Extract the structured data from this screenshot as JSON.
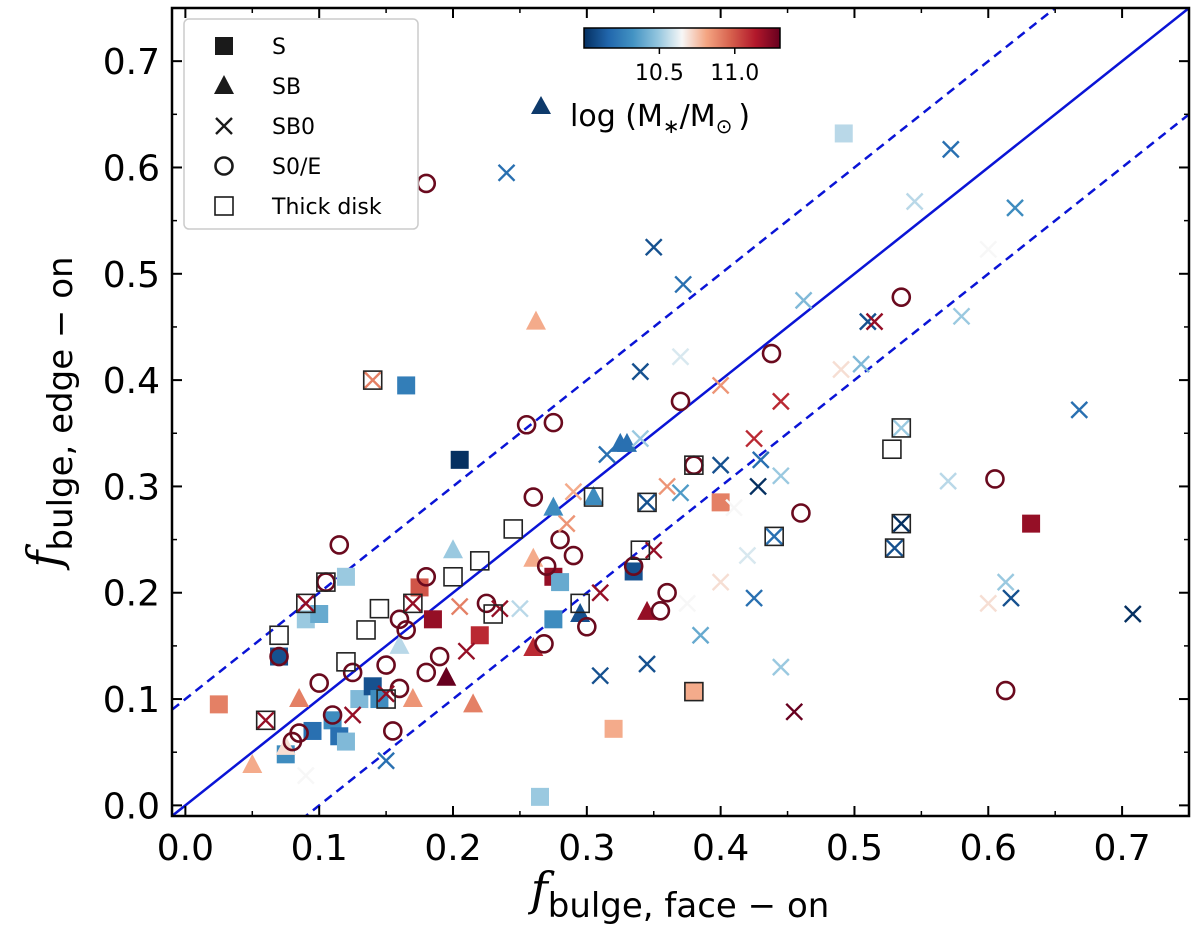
{
  "chart_data": {
    "type": "scatter",
    "xlabel": {
      "main": "f",
      "sub": "bulge, face − on"
    },
    "ylabel": {
      "main": "f",
      "sub": "bulge, edge − on"
    },
    "xlim": [
      -0.01,
      0.75
    ],
    "ylim": [
      -0.01,
      0.75
    ],
    "x_ticks": [
      "0.0",
      "0.1",
      "0.2",
      "0.3",
      "0.4",
      "0.5",
      "0.6",
      "0.7"
    ],
    "y_ticks": [
      "0.0",
      "0.1",
      "0.2",
      "0.3",
      "0.4",
      "0.5",
      "0.6",
      "0.7"
    ],
    "x_tick_values": [
      0,
      0.1,
      0.2,
      0.3,
      0.4,
      0.5,
      0.6,
      0.7
    ],
    "y_tick_values": [
      0,
      0.1,
      0.2,
      0.3,
      0.4,
      0.5,
      0.6,
      0.7
    ],
    "reference_lines": [
      {
        "style": "solid",
        "intercept": 0.0,
        "slope": 1,
        "color": "#0a14d6"
      },
      {
        "style": "dashed",
        "intercept": 0.1,
        "slope": 1,
        "color": "#0a14d6"
      },
      {
        "style": "dashed",
        "intercept": -0.1,
        "slope": 1,
        "color": "#0a14d6"
      }
    ],
    "legend": {
      "placement": "top-left",
      "entries": [
        {
          "marker": "square",
          "label": "S"
        },
        {
          "marker": "triangle",
          "label": "SB"
        },
        {
          "marker": "x",
          "label": "SB0"
        },
        {
          "marker": "circle",
          "label": "S0/E"
        },
        {
          "marker": "open-square",
          "label": "Thick disk"
        }
      ]
    },
    "colorbar": {
      "placement": "top-center",
      "range": [
        10.0,
        11.3
      ],
      "tick_values": [
        10.5,
        11.0
      ],
      "tick_labels": [
        "10.5",
        "11.0"
      ],
      "colormap": [
        "#053061",
        "#2166ac",
        "#4393c3",
        "#92c5de",
        "#f7f7f7",
        "#f4a582",
        "#d6604d",
        "#b2182b",
        "#67001f"
      ],
      "marker": "triangle",
      "marker_color": "#0e3a6b",
      "title": "log (M",
      "title_sub1": "∗",
      "title_mid": "/M",
      "title_sub2": "⊙",
      "title_end": ")"
    },
    "points": [
      {
        "x": 0.025,
        "y": 0.095,
        "m": "square",
        "c": 10.9
      },
      {
        "x": 0.05,
        "y": 0.038,
        "m": "triangle",
        "c": 10.8
      },
      {
        "x": 0.06,
        "y": 0.08,
        "m": "x",
        "c": 11.2
      },
      {
        "x": 0.06,
        "y": 0.08,
        "m": "thick",
        "c": 11.2
      },
      {
        "x": 0.07,
        "y": 0.16,
        "m": "thick",
        "c": 10.7
      },
      {
        "x": 0.07,
        "y": 0.14,
        "m": "circle",
        "c": 11.3
      },
      {
        "x": 0.07,
        "y": 0.14,
        "m": "square",
        "c": 10.1
      },
      {
        "x": 0.075,
        "y": 0.048,
        "m": "square",
        "c": 10.3
      },
      {
        "x": 0.075,
        "y": 0.055,
        "m": "triangle",
        "c": 10.7
      },
      {
        "x": 0.08,
        "y": 0.06,
        "m": "circle",
        "c": 11.3
      },
      {
        "x": 0.085,
        "y": 0.068,
        "m": "circle",
        "c": 11.3
      },
      {
        "x": 0.085,
        "y": 0.1,
        "m": "triangle",
        "c": 10.9
      },
      {
        "x": 0.09,
        "y": 0.19,
        "m": "thick",
        "c": 10.9
      },
      {
        "x": 0.09,
        "y": 0.19,
        "m": "x",
        "c": 11.2
      },
      {
        "x": 0.09,
        "y": 0.175,
        "m": "square",
        "c": 10.5
      },
      {
        "x": 0.09,
        "y": 0.028,
        "m": "x",
        "c": 10.65
      },
      {
        "x": 0.095,
        "y": 0.07,
        "m": "square",
        "c": 10.2
      },
      {
        "x": 0.1,
        "y": 0.115,
        "m": "circle",
        "c": 11.3
      },
      {
        "x": 0.1,
        "y": 0.18,
        "m": "square",
        "c": 10.4
      },
      {
        "x": 0.105,
        "y": 0.21,
        "m": "circle",
        "c": 11.3
      },
      {
        "x": 0.105,
        "y": 0.21,
        "m": "thick",
        "c": 10.8
      },
      {
        "x": 0.11,
        "y": 0.085,
        "m": "circle",
        "c": 11.3
      },
      {
        "x": 0.11,
        "y": 0.08,
        "m": "square",
        "c": 10.3
      },
      {
        "x": 0.115,
        "y": 0.245,
        "m": "circle",
        "c": 11.3
      },
      {
        "x": 0.115,
        "y": 0.065,
        "m": "square",
        "c": 10.2
      },
      {
        "x": 0.12,
        "y": 0.215,
        "m": "square",
        "c": 10.5
      },
      {
        "x": 0.12,
        "y": 0.06,
        "m": "square",
        "c": 10.45
      },
      {
        "x": 0.12,
        "y": 0.135,
        "m": "thick",
        "c": 10.6
      },
      {
        "x": 0.125,
        "y": 0.125,
        "m": "circle",
        "c": 11.3
      },
      {
        "x": 0.125,
        "y": 0.085,
        "m": "x",
        "c": 11.2
      },
      {
        "x": 0.13,
        "y": 0.1,
        "m": "square",
        "c": 10.45
      },
      {
        "x": 0.135,
        "y": 0.165,
        "m": "thick",
        "c": 10.8
      },
      {
        "x": 0.14,
        "y": 0.4,
        "m": "thick",
        "c": 10.8
      },
      {
        "x": 0.14,
        "y": 0.4,
        "m": "x",
        "c": 10.9
      },
      {
        "x": 0.14,
        "y": 0.112,
        "m": "square",
        "c": 10.1
      },
      {
        "x": 0.145,
        "y": 0.185,
        "m": "thick",
        "c": 10.8
      },
      {
        "x": 0.145,
        "y": 0.1,
        "m": "square",
        "c": 10.3
      },
      {
        "x": 0.15,
        "y": 0.105,
        "m": "x",
        "c": 11.2
      },
      {
        "x": 0.15,
        "y": 0.1,
        "m": "thick",
        "c": 10.3
      },
      {
        "x": 0.15,
        "y": 0.042,
        "m": "x",
        "c": 10.2
      },
      {
        "x": 0.15,
        "y": 0.132,
        "m": "circle",
        "c": 11.3
      },
      {
        "x": 0.155,
        "y": 0.07,
        "m": "circle",
        "c": 11.3
      },
      {
        "x": 0.16,
        "y": 0.175,
        "m": "circle",
        "c": 11.3
      },
      {
        "x": 0.16,
        "y": 0.11,
        "m": "circle",
        "c": 11.3
      },
      {
        "x": 0.16,
        "y": 0.15,
        "m": "triangle",
        "c": 10.55
      },
      {
        "x": 0.165,
        "y": 0.395,
        "m": "square",
        "c": 10.25
      },
      {
        "x": 0.165,
        "y": 0.165,
        "m": "circle",
        "c": 11.3
      },
      {
        "x": 0.17,
        "y": 0.19,
        "m": "thick",
        "c": 10.8
      },
      {
        "x": 0.17,
        "y": 0.19,
        "m": "x",
        "c": 11.2
      },
      {
        "x": 0.17,
        "y": 0.1,
        "m": "triangle",
        "c": 10.85
      },
      {
        "x": 0.175,
        "y": 0.205,
        "m": "square",
        "c": 11.0
      },
      {
        "x": 0.18,
        "y": 0.585,
        "m": "circle",
        "c": 11.3
      },
      {
        "x": 0.18,
        "y": 0.215,
        "m": "circle",
        "c": 11.3
      },
      {
        "x": 0.18,
        "y": 0.125,
        "m": "circle",
        "c": 11.3
      },
      {
        "x": 0.185,
        "y": 0.175,
        "m": "square",
        "c": 11.2
      },
      {
        "x": 0.19,
        "y": 0.14,
        "m": "circle",
        "c": 11.3
      },
      {
        "x": 0.195,
        "y": 0.12,
        "m": "triangle",
        "c": 11.3
      },
      {
        "x": 0.2,
        "y": 0.215,
        "m": "thick",
        "c": 10.8
      },
      {
        "x": 0.2,
        "y": 0.24,
        "m": "triangle",
        "c": 10.5
      },
      {
        "x": 0.205,
        "y": 0.325,
        "m": "square",
        "c": 10.0
      },
      {
        "x": 0.205,
        "y": 0.187,
        "m": "x",
        "c": 10.9
      },
      {
        "x": 0.21,
        "y": 0.145,
        "m": "x",
        "c": 11.2
      },
      {
        "x": 0.215,
        "y": 0.095,
        "m": "triangle",
        "c": 10.9
      },
      {
        "x": 0.22,
        "y": 0.16,
        "m": "square",
        "c": 11.1
      },
      {
        "x": 0.22,
        "y": 0.23,
        "m": "thick",
        "c": 10.85
      },
      {
        "x": 0.225,
        "y": 0.19,
        "m": "circle",
        "c": 11.3
      },
      {
        "x": 0.23,
        "y": 0.18,
        "m": "thick",
        "c": 10.85
      },
      {
        "x": 0.235,
        "y": 0.185,
        "m": "x",
        "c": 11.2
      },
      {
        "x": 0.24,
        "y": 0.595,
        "m": "x",
        "c": 10.2
      },
      {
        "x": 0.245,
        "y": 0.26,
        "m": "thick",
        "c": 10.85
      },
      {
        "x": 0.25,
        "y": 0.185,
        "m": "x",
        "c": 10.55
      },
      {
        "x": 0.255,
        "y": 0.358,
        "m": "circle",
        "c": 11.3
      },
      {
        "x": 0.26,
        "y": 0.29,
        "m": "circle",
        "c": 11.3
      },
      {
        "x": 0.26,
        "y": 0.232,
        "m": "triangle",
        "c": 10.8
      },
      {
        "x": 0.26,
        "y": 0.148,
        "m": "triangle",
        "c": 11.1
      },
      {
        "x": 0.262,
        "y": 0.455,
        "m": "triangle",
        "c": 10.8
      },
      {
        "x": 0.265,
        "y": 0.008,
        "m": "square",
        "c": 10.5
      },
      {
        "x": 0.268,
        "y": 0.152,
        "m": "circle",
        "c": 11.3
      },
      {
        "x": 0.27,
        "y": 0.225,
        "m": "circle",
        "c": 11.3
      },
      {
        "x": 0.275,
        "y": 0.36,
        "m": "circle",
        "c": 11.3
      },
      {
        "x": 0.275,
        "y": 0.28,
        "m": "triangle",
        "c": 10.3
      },
      {
        "x": 0.275,
        "y": 0.215,
        "m": "square",
        "c": 11.2
      },
      {
        "x": 0.275,
        "y": 0.175,
        "m": "square",
        "c": 10.3
      },
      {
        "x": 0.28,
        "y": 0.25,
        "m": "circle",
        "c": 11.3
      },
      {
        "x": 0.28,
        "y": 0.21,
        "m": "square",
        "c": 10.4
      },
      {
        "x": 0.285,
        "y": 0.265,
        "m": "x",
        "c": 10.85
      },
      {
        "x": 0.29,
        "y": 0.235,
        "m": "circle",
        "c": 11.3
      },
      {
        "x": 0.29,
        "y": 0.295,
        "m": "x",
        "c": 10.8
      },
      {
        "x": 0.295,
        "y": 0.19,
        "m": "thick",
        "c": 10.7
      },
      {
        "x": 0.295,
        "y": 0.18,
        "m": "triangle",
        "c": 10.1
      },
      {
        "x": 0.3,
        "y": 0.168,
        "m": "circle",
        "c": 11.3
      },
      {
        "x": 0.305,
        "y": 0.29,
        "m": "thick",
        "c": 10.5
      },
      {
        "x": 0.305,
        "y": 0.29,
        "m": "triangle",
        "c": 10.3
      },
      {
        "x": 0.31,
        "y": 0.2,
        "m": "x",
        "c": 11.2
      },
      {
        "x": 0.31,
        "y": 0.122,
        "m": "x",
        "c": 10.1
      },
      {
        "x": 0.315,
        "y": 0.33,
        "m": "x",
        "c": 10.2
      },
      {
        "x": 0.32,
        "y": 0.072,
        "m": "square",
        "c": 10.8
      },
      {
        "x": 0.325,
        "y": 0.34,
        "m": "triangle",
        "c": 10.2
      },
      {
        "x": 0.33,
        "y": 0.34,
        "m": "triangle",
        "c": 10.2
      },
      {
        "x": 0.335,
        "y": 0.225,
        "m": "circle",
        "c": 11.3
      },
      {
        "x": 0.335,
        "y": 0.22,
        "m": "square",
        "c": 10.1
      },
      {
        "x": 0.34,
        "y": 0.345,
        "m": "x",
        "c": 10.5
      },
      {
        "x": 0.34,
        "y": 0.24,
        "m": "thick",
        "c": 10.7
      },
      {
        "x": 0.34,
        "y": 0.408,
        "m": "x",
        "c": 10.1
      },
      {
        "x": 0.345,
        "y": 0.285,
        "m": "thick",
        "c": 10.3
      },
      {
        "x": 0.345,
        "y": 0.285,
        "m": "x",
        "c": 10.1
      },
      {
        "x": 0.345,
        "y": 0.182,
        "m": "triangle",
        "c": 11.2
      },
      {
        "x": 0.345,
        "y": 0.133,
        "m": "x",
        "c": 10.1
      },
      {
        "x": 0.35,
        "y": 0.525,
        "m": "x",
        "c": 10.1
      },
      {
        "x": 0.35,
        "y": 0.24,
        "m": "x",
        "c": 11.2
      },
      {
        "x": 0.355,
        "y": 0.183,
        "m": "circle",
        "c": 11.3
      },
      {
        "x": 0.36,
        "y": 0.2,
        "m": "circle",
        "c": 11.3
      },
      {
        "x": 0.36,
        "y": 0.3,
        "m": "x",
        "c": 10.85
      },
      {
        "x": 0.37,
        "y": 0.38,
        "m": "circle",
        "c": 11.3
      },
      {
        "x": 0.37,
        "y": 0.422,
        "m": "x",
        "c": 10.6
      },
      {
        "x": 0.37,
        "y": 0.294,
        "m": "x",
        "c": 10.35
      },
      {
        "x": 0.372,
        "y": 0.49,
        "m": "x",
        "c": 10.2
      },
      {
        "x": 0.375,
        "y": 0.19,
        "m": "x",
        "c": 10.65
      },
      {
        "x": 0.38,
        "y": 0.32,
        "m": "thick",
        "c": 10.9
      },
      {
        "x": 0.38,
        "y": 0.32,
        "m": "circle",
        "c": 11.3
      },
      {
        "x": 0.38,
        "y": 0.107,
        "m": "thick",
        "c": 10.8
      },
      {
        "x": 0.38,
        "y": 0.107,
        "m": "square",
        "c": 10.8
      },
      {
        "x": 0.385,
        "y": 0.16,
        "m": "x",
        "c": 10.4
      },
      {
        "x": 0.4,
        "y": 0.395,
        "m": "x",
        "c": 10.85
      },
      {
        "x": 0.4,
        "y": 0.285,
        "m": "square",
        "c": 10.9
      },
      {
        "x": 0.4,
        "y": 0.32,
        "m": "x",
        "c": 10.1
      },
      {
        "x": 0.4,
        "y": 0.21,
        "m": "x",
        "c": 10.7
      },
      {
        "x": 0.41,
        "y": 0.28,
        "m": "x",
        "c": 10.65
      },
      {
        "x": 0.42,
        "y": 0.235,
        "m": "x",
        "c": 10.6
      },
      {
        "x": 0.425,
        "y": 0.345,
        "m": "x",
        "c": 11.1
      },
      {
        "x": 0.425,
        "y": 0.195,
        "m": "x",
        "c": 10.2
      },
      {
        "x": 0.428,
        "y": 0.3,
        "m": "x",
        "c": 10.0
      },
      {
        "x": 0.43,
        "y": 0.325,
        "m": "x",
        "c": 10.2
      },
      {
        "x": 0.438,
        "y": 0.425,
        "m": "circle",
        "c": 11.3
      },
      {
        "x": 0.44,
        "y": 0.253,
        "m": "thick",
        "c": 10.3
      },
      {
        "x": 0.44,
        "y": 0.253,
        "m": "x",
        "c": 10.2
      },
      {
        "x": 0.445,
        "y": 0.38,
        "m": "x",
        "c": 11.1
      },
      {
        "x": 0.445,
        "y": 0.31,
        "m": "x",
        "c": 10.5
      },
      {
        "x": 0.445,
        "y": 0.13,
        "m": "x",
        "c": 10.5
      },
      {
        "x": 0.455,
        "y": 0.088,
        "m": "x",
        "c": 11.3
      },
      {
        "x": 0.46,
        "y": 0.275,
        "m": "circle",
        "c": 11.3
      },
      {
        "x": 0.462,
        "y": 0.475,
        "m": "x",
        "c": 10.45
      },
      {
        "x": 0.49,
        "y": 0.41,
        "m": "x",
        "c": 10.7
      },
      {
        "x": 0.492,
        "y": 0.632,
        "m": "square",
        "c": 10.55
      },
      {
        "x": 0.505,
        "y": 0.415,
        "m": "x",
        "c": 10.45
      },
      {
        "x": 0.51,
        "y": 0.455,
        "m": "x",
        "c": 10.1
      },
      {
        "x": 0.515,
        "y": 0.455,
        "m": "x",
        "c": 11.2
      },
      {
        "x": 0.528,
        "y": 0.335,
        "m": "thick",
        "c": 10.5
      },
      {
        "x": 0.53,
        "y": 0.242,
        "m": "thick",
        "c": 10.3
      },
      {
        "x": 0.53,
        "y": 0.242,
        "m": "x",
        "c": 10.1
      },
      {
        "x": 0.535,
        "y": 0.478,
        "m": "circle",
        "c": 11.3
      },
      {
        "x": 0.535,
        "y": 0.355,
        "m": "thick",
        "c": 10.4
      },
      {
        "x": 0.535,
        "y": 0.355,
        "m": "x",
        "c": 10.5
      },
      {
        "x": 0.535,
        "y": 0.265,
        "m": "thick",
        "c": 10.0
      },
      {
        "x": 0.535,
        "y": 0.265,
        "m": "x",
        "c": 10.0
      },
      {
        "x": 0.545,
        "y": 0.568,
        "m": "x",
        "c": 10.55
      },
      {
        "x": 0.57,
        "y": 0.305,
        "m": "x",
        "c": 10.55
      },
      {
        "x": 0.572,
        "y": 0.617,
        "m": "x",
        "c": 10.2
      },
      {
        "x": 0.58,
        "y": 0.46,
        "m": "x",
        "c": 10.5
      },
      {
        "x": 0.6,
        "y": 0.523,
        "m": "x",
        "c": 10.65
      },
      {
        "x": 0.6,
        "y": 0.19,
        "m": "x",
        "c": 10.7
      },
      {
        "x": 0.605,
        "y": 0.307,
        "m": "circle",
        "c": 11.3
      },
      {
        "x": 0.613,
        "y": 0.21,
        "m": "x",
        "c": 10.5
      },
      {
        "x": 0.613,
        "y": 0.108,
        "m": "circle",
        "c": 11.3
      },
      {
        "x": 0.617,
        "y": 0.195,
        "m": "x",
        "c": 10.1
      },
      {
        "x": 0.62,
        "y": 0.562,
        "m": "x",
        "c": 10.3
      },
      {
        "x": 0.632,
        "y": 0.265,
        "m": "square",
        "c": 11.2
      },
      {
        "x": 0.668,
        "y": 0.372,
        "m": "x",
        "c": 10.2
      },
      {
        "x": 0.708,
        "y": 0.18,
        "m": "x",
        "c": 10.0
      }
    ]
  }
}
